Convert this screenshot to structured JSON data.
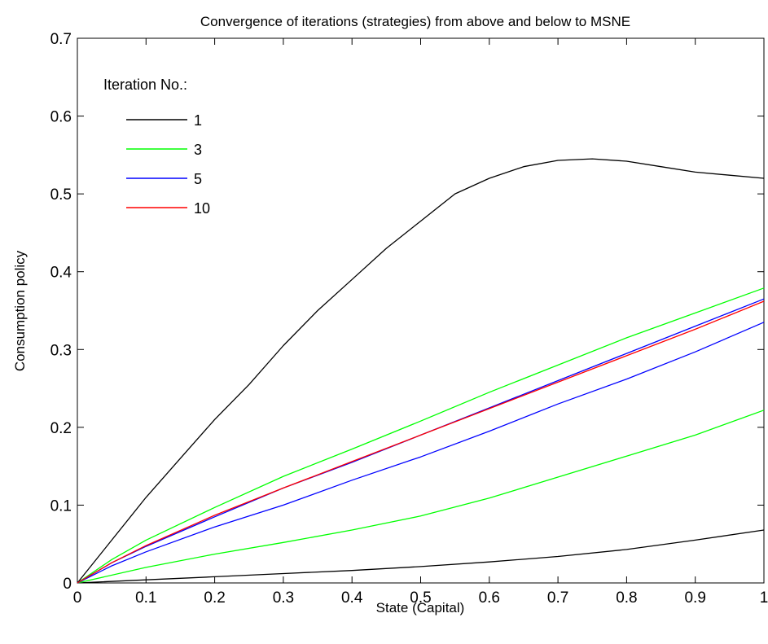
{
  "chart_data": {
    "type": "line",
    "title": "Convergence of iterations (strategies) from above and below to MSNE",
    "xlabel": "State (Capital)",
    "ylabel": "Consumption policy",
    "xlim": [
      0,
      1
    ],
    "ylim": [
      0,
      0.7
    ],
    "x_ticks": [
      "0",
      "0.1",
      "0.2",
      "0.3",
      "0.4",
      "0.5",
      "0.6",
      "0.7",
      "0.8",
      "0.9",
      "1"
    ],
    "y_ticks": [
      "0",
      "0.1",
      "0.2",
      "0.3",
      "0.4",
      "0.5",
      "0.6",
      "0.7"
    ],
    "grid": false,
    "legend": {
      "title": "Iteration No.:",
      "placement": "top-left",
      "entries": [
        {
          "label": "1",
          "color": "#000000"
        },
        {
          "label": "3",
          "color": "#00ff00"
        },
        {
          "label": "5",
          "color": "#0000ff"
        },
        {
          "label": "10",
          "color": "#ff0000"
        }
      ]
    },
    "series": [
      {
        "name": "1",
        "color": "#000000",
        "x": [
          0,
          0.05,
          0.1,
          0.15,
          0.2,
          0.25,
          0.3,
          0.35,
          0.4,
          0.45,
          0.5,
          0.55,
          0.6,
          0.65,
          0.7,
          0.75,
          0.8,
          0.85,
          0.9,
          0.95,
          1.0
        ],
        "y": [
          0,
          0.055,
          0.11,
          0.16,
          0.21,
          0.255,
          0.305,
          0.35,
          0.39,
          0.43,
          0.465,
          0.5,
          0.52,
          0.535,
          0.543,
          0.545,
          0.542,
          0.535,
          0.528,
          0.524,
          0.52
        ]
      },
      {
        "name": "1",
        "color": "#000000",
        "x": [
          0,
          0.1,
          0.2,
          0.3,
          0.4,
          0.5,
          0.6,
          0.7,
          0.8,
          0.9,
          1.0
        ],
        "y": [
          0,
          0.004,
          0.008,
          0.012,
          0.016,
          0.021,
          0.027,
          0.034,
          0.043,
          0.055,
          0.068
        ]
      },
      {
        "name": "3",
        "color": "#00ff00",
        "x": [
          0,
          0.05,
          0.1,
          0.2,
          0.3,
          0.4,
          0.5,
          0.6,
          0.7,
          0.8,
          0.9,
          1.0
        ],
        "y": [
          0,
          0.03,
          0.055,
          0.097,
          0.137,
          0.172,
          0.208,
          0.245,
          0.28,
          0.315,
          0.347,
          0.379
        ]
      },
      {
        "name": "3",
        "color": "#00ff00",
        "x": [
          0,
          0.1,
          0.2,
          0.3,
          0.4,
          0.5,
          0.6,
          0.7,
          0.8,
          0.9,
          1.0
        ],
        "y": [
          0,
          0.02,
          0.037,
          0.052,
          0.068,
          0.086,
          0.109,
          0.136,
          0.163,
          0.19,
          0.222
        ]
      },
      {
        "name": "5",
        "color": "#0000ff",
        "x": [
          0,
          0.05,
          0.1,
          0.2,
          0.3,
          0.4,
          0.5,
          0.6,
          0.7,
          0.8,
          0.9,
          1.0
        ],
        "y": [
          0,
          0.026,
          0.047,
          0.085,
          0.122,
          0.155,
          0.19,
          0.225,
          0.26,
          0.295,
          0.33,
          0.365
        ]
      },
      {
        "name": "5",
        "color": "#0000ff",
        "x": [
          0,
          0.05,
          0.1,
          0.2,
          0.3,
          0.4,
          0.5,
          0.6,
          0.7,
          0.8,
          0.9,
          1.0
        ],
        "y": [
          0,
          0.022,
          0.04,
          0.072,
          0.1,
          0.132,
          0.162,
          0.195,
          0.23,
          0.262,
          0.297,
          0.335
        ]
      },
      {
        "name": "10",
        "color": "#ff0000",
        "x": [
          0,
          0.05,
          0.1,
          0.2,
          0.3,
          0.4,
          0.5,
          0.6,
          0.7,
          0.8,
          0.9,
          1.0
        ],
        "y": [
          0,
          0.026,
          0.048,
          0.087,
          0.122,
          0.156,
          0.19,
          0.224,
          0.258,
          0.292,
          0.326,
          0.362
        ]
      }
    ]
  }
}
